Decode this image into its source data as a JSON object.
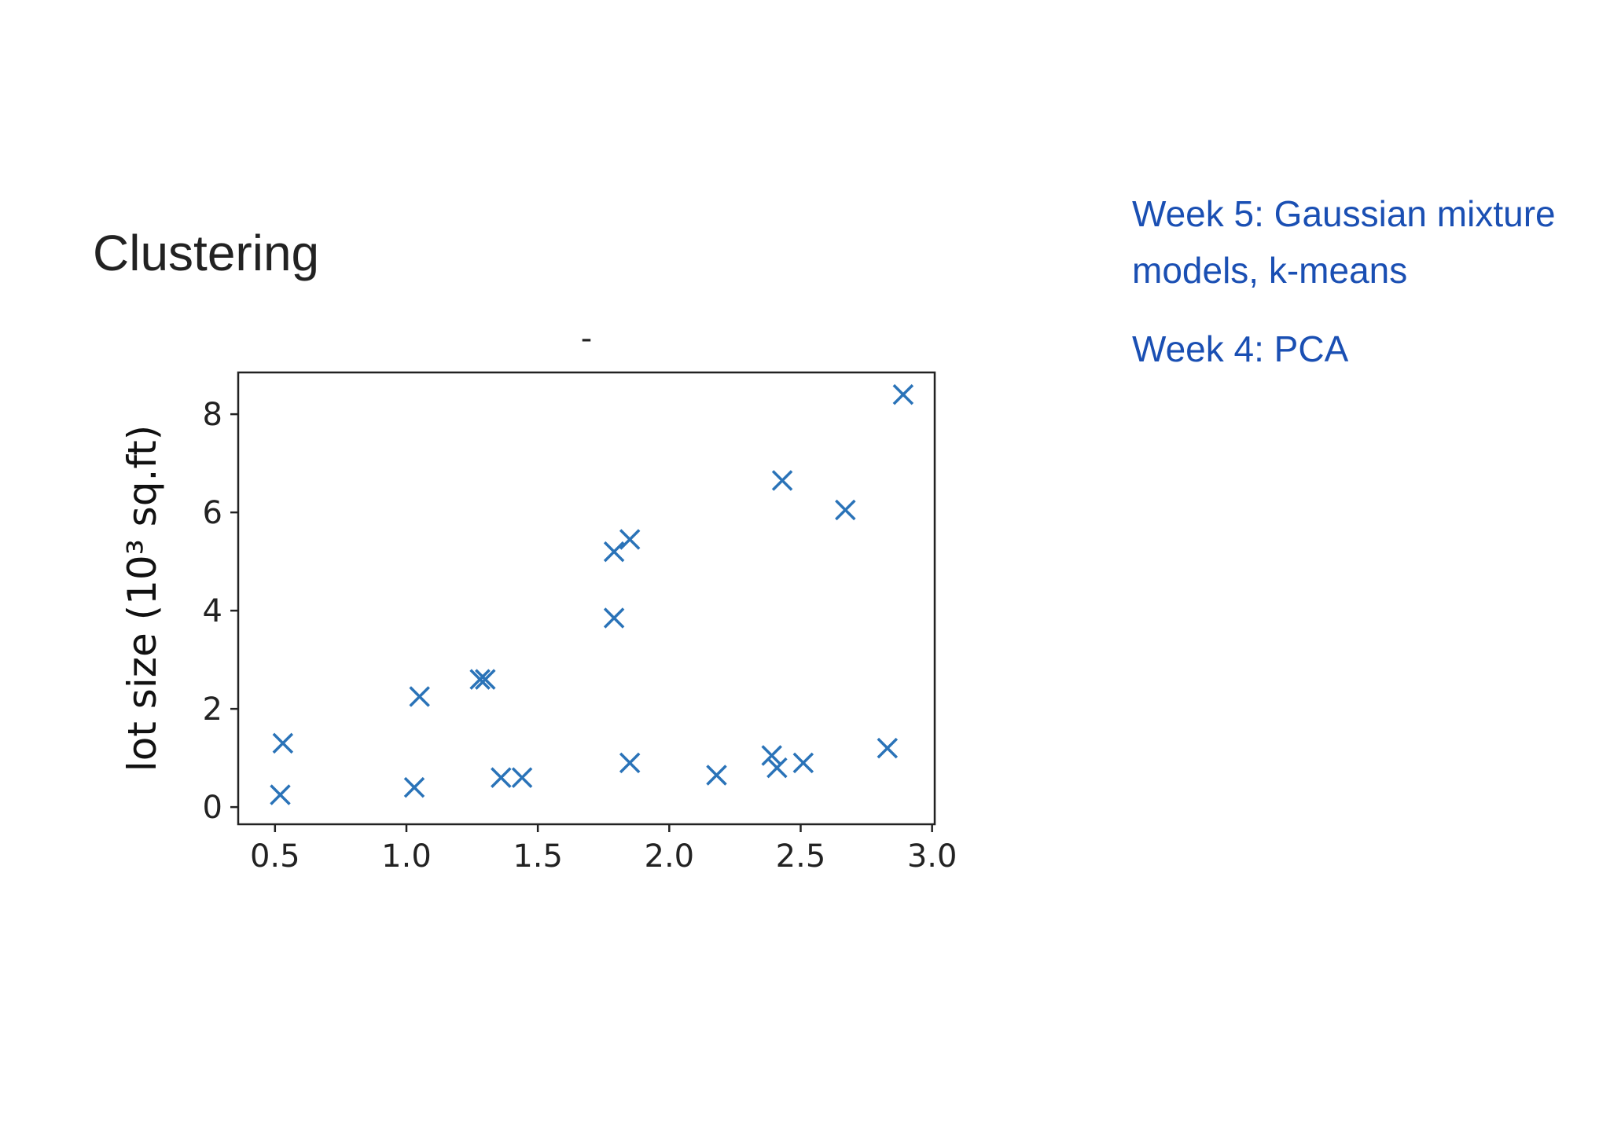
{
  "slide": {
    "title": "Clustering",
    "links": [
      "Week 5: Gaussian mixture models, k-means",
      "Week 4: PCA"
    ]
  },
  "chart_data": {
    "type": "scatter",
    "title": "-",
    "xlabel": "",
    "ylabel": "lot size (10³ sq.ft)",
    "xlim": [
      0.36,
      3.01
    ],
    "ylim": [
      -0.35,
      8.85
    ],
    "xticks": [
      "0.5",
      "1.0",
      "1.5",
      "2.0",
      "2.5",
      "3.0"
    ],
    "yticks": [
      "0",
      "2",
      "4",
      "6",
      "8"
    ],
    "marker": "x",
    "color": "#2a73b8",
    "series": [
      {
        "points": [
          {
            "x": 0.52,
            "y": 0.25
          },
          {
            "x": 0.53,
            "y": 1.3
          },
          {
            "x": 1.03,
            "y": 0.4
          },
          {
            "x": 1.05,
            "y": 2.25
          },
          {
            "x": 1.28,
            "y": 2.6
          },
          {
            "x": 1.3,
            "y": 2.6
          },
          {
            "x": 1.36,
            "y": 0.6
          },
          {
            "x": 1.44,
            "y": 0.6
          },
          {
            "x": 1.79,
            "y": 5.2
          },
          {
            "x": 1.79,
            "y": 3.85
          },
          {
            "x": 1.85,
            "y": 5.45
          },
          {
            "x": 1.85,
            "y": 0.9
          },
          {
            "x": 2.18,
            "y": 0.65
          },
          {
            "x": 2.39,
            "y": 1.05
          },
          {
            "x": 2.41,
            "y": 0.8
          },
          {
            "x": 2.43,
            "y": 6.65
          },
          {
            "x": 2.51,
            "y": 0.9
          },
          {
            "x": 2.67,
            "y": 6.05
          },
          {
            "x": 2.83,
            "y": 1.2
          },
          {
            "x": 2.89,
            "y": 8.4
          }
        ]
      }
    ]
  }
}
